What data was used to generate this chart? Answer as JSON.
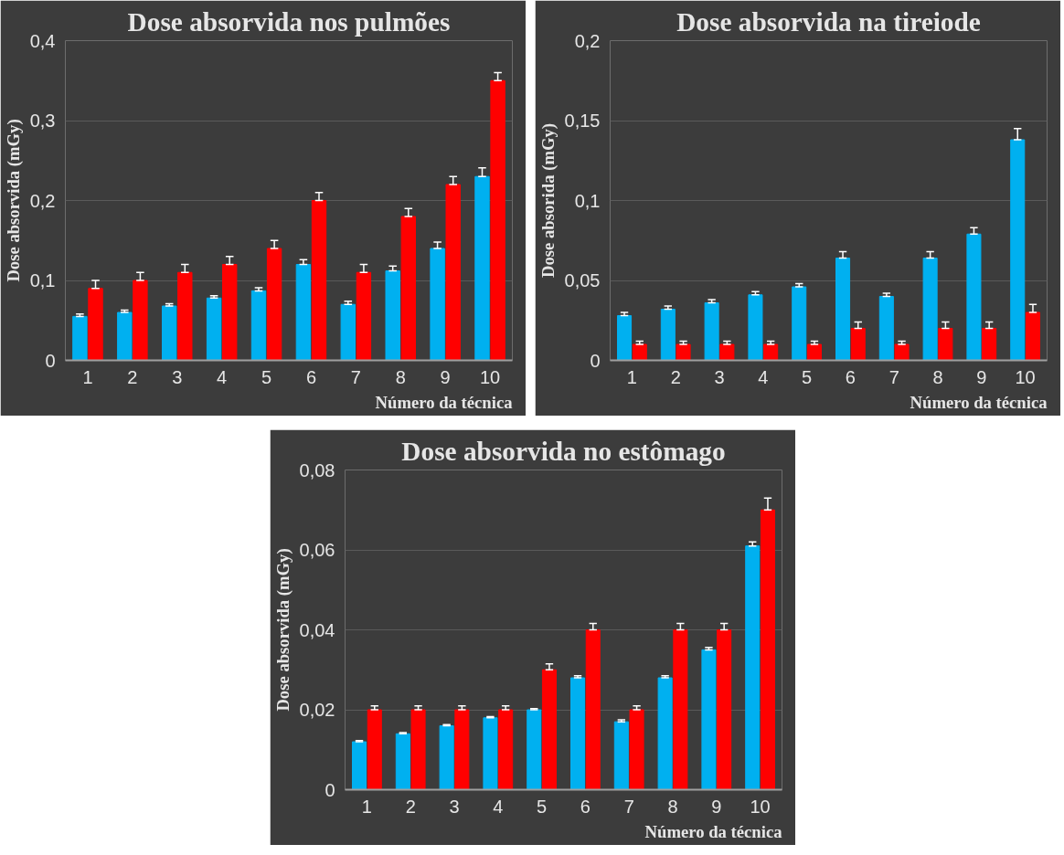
{
  "chart_data": [
    {
      "type": "bar",
      "title": "Dose absorvida nos pulmões",
      "xlabel": "Número da técnica",
      "ylabel": "Dose absorvida (mGy)",
      "categories": [
        "1",
        "2",
        "3",
        "4",
        "5",
        "6",
        "7",
        "8",
        "9",
        "10"
      ],
      "ylim": [
        0,
        0.4
      ],
      "yticks": [
        0,
        {
          "value": 0.1,
          "label": "0,1"
        },
        {
          "value": 0.2,
          "label": "0,2"
        },
        {
          "value": 0.3,
          "label": "0,3"
        },
        {
          "value": 0.4,
          "label": "0,4"
        }
      ],
      "grid": "y",
      "series": [
        {
          "color": "#00b0f0",
          "values": [
            0.055,
            0.06,
            0.068,
            0.078,
            0.087,
            0.12,
            0.07,
            0.112,
            0.14,
            0.23
          ],
          "errors": [
            [
              0.055,
              0.058
            ],
            [
              0.06,
              0.063
            ],
            [
              0.068,
              0.071
            ],
            [
              0.078,
              0.081
            ],
            [
              0.087,
              0.091
            ],
            [
              0.12,
              0.126
            ],
            [
              0.07,
              0.074
            ],
            [
              0.112,
              0.118
            ],
            [
              0.14,
              0.148
            ],
            [
              0.23,
              0.241
            ]
          ]
        },
        {
          "color": "#ff0000",
          "values": [
            0.09,
            0.1,
            0.11,
            0.12,
            0.14,
            0.2,
            0.11,
            0.18,
            0.22,
            0.35
          ],
          "errors": [
            [
              0.09,
              0.1
            ],
            [
              0.1,
              0.11
            ],
            [
              0.11,
              0.12
            ],
            [
              0.12,
              0.13
            ],
            [
              0.14,
              0.15
            ],
            [
              0.2,
              0.21
            ],
            [
              0.11,
              0.12
            ],
            [
              0.18,
              0.19
            ],
            [
              0.22,
              0.23
            ],
            [
              0.35,
              0.36
            ]
          ]
        }
      ]
    },
    {
      "type": "bar",
      "title": "Dose absorvida na tireiode",
      "xlabel": "Número da técnica",
      "ylabel": "Dose absorida (mGy)",
      "categories": [
        "1",
        "2",
        "3",
        "4",
        "5",
        "6",
        "7",
        "8",
        "9",
        "10"
      ],
      "ylim": [
        0,
        0.2
      ],
      "yticks": [
        0,
        {
          "value": 0.05,
          "label": "0,05"
        },
        {
          "value": 0.1,
          "label": "0,1"
        },
        {
          "value": 0.15,
          "label": "0,15"
        },
        {
          "value": 0.2,
          "label": "0,2"
        }
      ],
      "grid": "y",
      "series": [
        {
          "color": "#00b0f0",
          "values": [
            0.028,
            0.032,
            0.036,
            0.041,
            0.046,
            0.064,
            0.04,
            0.064,
            0.079,
            0.138
          ],
          "errors": [
            [
              0.028,
              0.03
            ],
            [
              0.032,
              0.034
            ],
            [
              0.036,
              0.038
            ],
            [
              0.041,
              0.043
            ],
            [
              0.046,
              0.048
            ],
            [
              0.064,
              0.068
            ],
            [
              0.04,
              0.042
            ],
            [
              0.064,
              0.068
            ],
            [
              0.079,
              0.083
            ],
            [
              0.138,
              0.145
            ]
          ]
        },
        {
          "color": "#ff0000",
          "values": [
            0.01,
            0.01,
            0.01,
            0.01,
            0.01,
            0.02,
            0.01,
            0.02,
            0.02,
            0.03
          ],
          "errors": [
            [
              0.01,
              0.012
            ],
            [
              0.01,
              0.012
            ],
            [
              0.01,
              0.012
            ],
            [
              0.01,
              0.012
            ],
            [
              0.01,
              0.012
            ],
            [
              0.02,
              0.024
            ],
            [
              0.01,
              0.012
            ],
            [
              0.02,
              0.024
            ],
            [
              0.02,
              0.024
            ],
            [
              0.03,
              0.035
            ]
          ]
        }
      ]
    },
    {
      "type": "bar",
      "title": "Dose absorvida no estômago",
      "xlabel": "Número da técnica",
      "ylabel": "Dose absorvida (mGy)",
      "categories": [
        "1",
        "2",
        "3",
        "4",
        "5",
        "6",
        "7",
        "8",
        "9",
        "10"
      ],
      "ylim": [
        0,
        0.08
      ],
      "yticks": [
        0,
        {
          "value": 0.02,
          "label": "0,02"
        },
        {
          "value": 0.04,
          "label": "0,04"
        },
        {
          "value": 0.06,
          "label": "0,06"
        },
        {
          "value": 0.08,
          "label": "0,08"
        }
      ],
      "grid": "y",
      "series": [
        {
          "color": "#00b0f0",
          "values": [
            0.012,
            0.014,
            0.016,
            0.018,
            0.02,
            0.028,
            0.017,
            0.028,
            0.035,
            0.061
          ],
          "errors": [
            [
              0.012,
              0.0123
            ],
            [
              0.014,
              0.0143
            ],
            [
              0.016,
              0.0163
            ],
            [
              0.018,
              0.0183
            ],
            [
              0.02,
              0.0203
            ],
            [
              0.028,
              0.0285
            ],
            [
              0.017,
              0.0175
            ],
            [
              0.028,
              0.0285
            ],
            [
              0.035,
              0.0356
            ],
            [
              0.061,
              0.062
            ]
          ]
        },
        {
          "color": "#ff0000",
          "values": [
            0.02,
            0.02,
            0.02,
            0.02,
            0.03,
            0.04,
            0.02,
            0.04,
            0.04,
            0.07
          ],
          "errors": [
            [
              0.02,
              0.021
            ],
            [
              0.02,
              0.021
            ],
            [
              0.02,
              0.021
            ],
            [
              0.02,
              0.021
            ],
            [
              0.03,
              0.0315
            ],
            [
              0.04,
              0.0416
            ],
            [
              0.02,
              0.021
            ],
            [
              0.04,
              0.0416
            ],
            [
              0.04,
              0.0416
            ],
            [
              0.07,
              0.073
            ]
          ]
        }
      ]
    }
  ]
}
